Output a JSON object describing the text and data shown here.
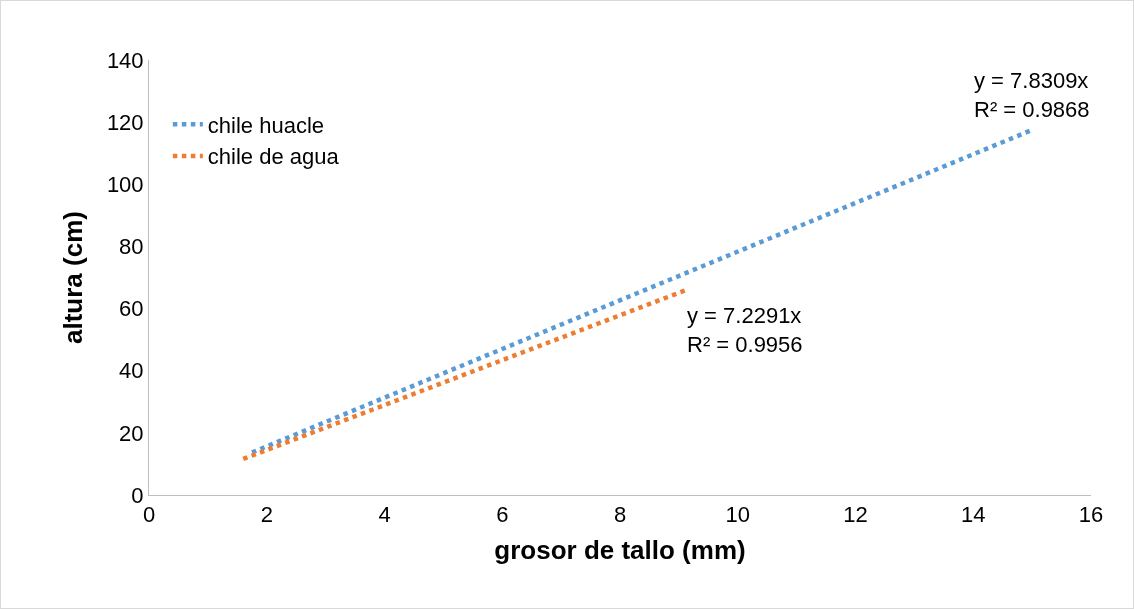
{
  "chart_data": {
    "type": "line",
    "xlabel": "grosor de tallo (mm)",
    "ylabel": "altura (cm)",
    "xlim": [
      0,
      16
    ],
    "xticks": [
      0,
      2,
      4,
      6,
      8,
      10,
      12,
      14,
      16
    ],
    "ylim": [
      0,
      140
    ],
    "yticks": [
      0,
      20,
      40,
      60,
      80,
      100,
      120,
      140
    ],
    "series": [
      {
        "name": "chile huacle",
        "color": "#5b9bd5",
        "x": [
          1.75,
          15
        ],
        "values": [
          13.7,
          117.5
        ]
      },
      {
        "name": "chile de agua",
        "color": "#ed7d31",
        "x": [
          1.6,
          9.1
        ],
        "values": [
          11.6,
          65.8
        ]
      }
    ],
    "annotations": [
      {
        "text": "y = 7.8309x\nR² = 0.9868",
        "x": 15,
        "y": 117.5
      },
      {
        "text": "y = 7.2291x\nR² = 0.9956",
        "x": 9.1,
        "y": 65.8
      }
    ],
    "line_style": "dotted",
    "marker": "none",
    "grid": false,
    "legend": "top left"
  }
}
